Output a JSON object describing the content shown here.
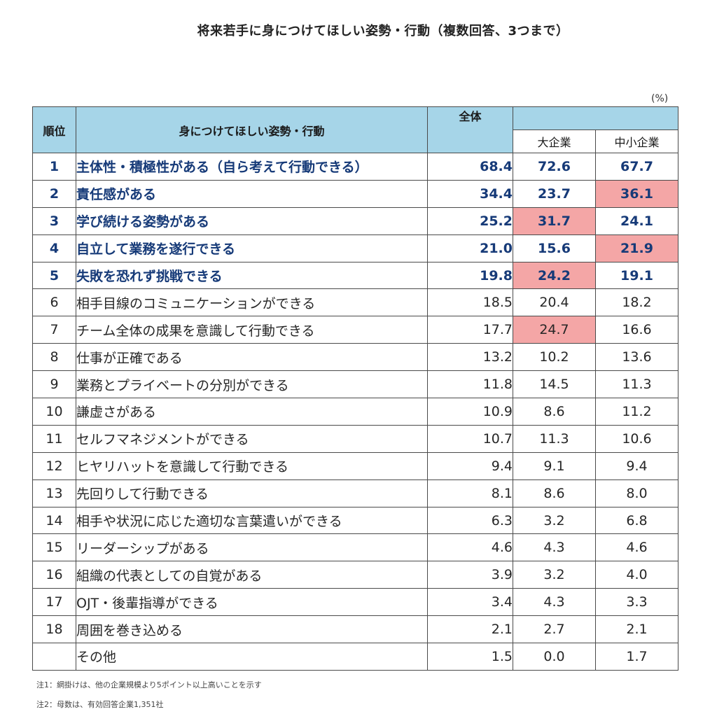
{
  "title": "将来若手に身につけてほしい姿勢・行動（複数回答、3つまで）",
  "unit": "(%)",
  "headers": {
    "rank": "順位",
    "item": "身につけてほしい姿勢・行動",
    "total": "全体",
    "large": "大企業",
    "sme": "中小企業"
  },
  "highlight_color": "#f4a6a6",
  "rows": [
    {
      "rank": "1",
      "item": "主体性・積極性がある（自ら考えて行動できる）",
      "total": "68.4",
      "large": "72.6",
      "sme": "67.7"
    },
    {
      "rank": "2",
      "item": "責任感がある",
      "total": "34.4",
      "large": "23.7",
      "sme": "36.1"
    },
    {
      "rank": "3",
      "item": "学び続ける姿勢がある",
      "total": "25.2",
      "large": "31.7",
      "sme": "24.1"
    },
    {
      "rank": "4",
      "item": "自立して業務を遂行できる",
      "total": "21.0",
      "large": "15.6",
      "sme": "21.9"
    },
    {
      "rank": "5",
      "item": "失敗を恐れず挑戦できる",
      "total": "19.8",
      "large": "24.2",
      "sme": "19.1"
    },
    {
      "rank": "6",
      "item": "相手目線のコミュニケーションができる",
      "total": "18.5",
      "large": "20.4",
      "sme": "18.2"
    },
    {
      "rank": "7",
      "item": "チーム全体の成果を意識して行動できる",
      "total": "17.7",
      "large": "24.7",
      "sme": "16.6"
    },
    {
      "rank": "8",
      "item": "仕事が正確である",
      "total": "13.2",
      "large": "10.2",
      "sme": "13.6"
    },
    {
      "rank": "9",
      "item": "業務とプライベートの分別ができる",
      "total": "11.8",
      "large": "14.5",
      "sme": "11.3"
    },
    {
      "rank": "10",
      "item": "謙虚さがある",
      "total": "10.9",
      "large": "8.6",
      "sme": "11.2"
    },
    {
      "rank": "11",
      "item": "セルフマネジメントができる",
      "total": "10.7",
      "large": "11.3",
      "sme": "10.6"
    },
    {
      "rank": "12",
      "item": "ヒヤリハットを意識して行動できる",
      "total": "9.4",
      "large": "9.1",
      "sme": "9.4"
    },
    {
      "rank": "13",
      "item": "先回りして行動できる",
      "total": "8.1",
      "large": "8.6",
      "sme": "8.0"
    },
    {
      "rank": "14",
      "item": "相手や状況に応じた適切な言葉遣いができる",
      "total": "6.3",
      "large": "3.2",
      "sme": "6.8"
    },
    {
      "rank": "15",
      "item": "リーダーシップがある",
      "total": "4.6",
      "large": "4.3",
      "sme": "4.6"
    },
    {
      "rank": "16",
      "item": "組織の代表としての自覚がある",
      "total": "3.9",
      "large": "3.2",
      "sme": "4.0"
    },
    {
      "rank": "17",
      "item": "OJT・後輩指導ができる",
      "total": "3.4",
      "large": "4.3",
      "sme": "3.3"
    },
    {
      "rank": "18",
      "item": "周囲を巻き込める",
      "total": "2.1",
      "large": "2.7",
      "sme": "2.1"
    },
    {
      "rank": "",
      "item": "その他",
      "total": "1.5",
      "large": "0.0",
      "sme": "1.7"
    }
  ],
  "bold_rows": [
    "1",
    "2",
    "3",
    "4",
    "5"
  ],
  "highlighted_cells": [
    {
      "rank": "2",
      "col": "sme"
    },
    {
      "rank": "3",
      "col": "large"
    },
    {
      "rank": "4",
      "col": "sme"
    },
    {
      "rank": "5",
      "col": "large"
    },
    {
      "rank": "7",
      "col": "large"
    }
  ],
  "notes": [
    "注1：網掛けは、他の企業規模より5ポイント以上高いことを示す",
    "注2：母数は、有効回答企業1,351社"
  ]
}
